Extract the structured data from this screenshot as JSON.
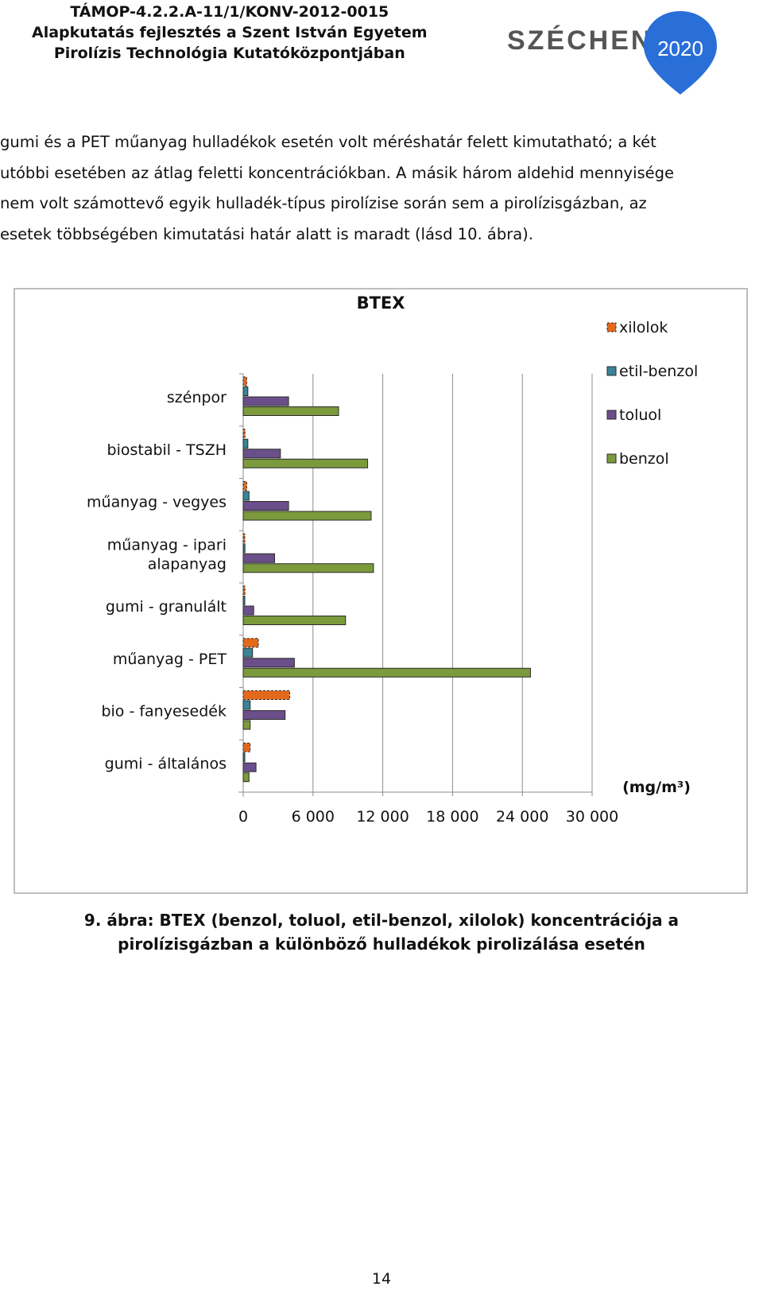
{
  "header": {
    "line1": "TÁMOP-4.2.2.A-11/1/KONV-2012-0015",
    "line2": "Alapkutatás fejlesztés a Szent István Egyetem",
    "line3": "Pirolízis Technológia Kutatóközpontjában"
  },
  "logo": {
    "text": "SZÉCHENYI",
    "year": "2020",
    "colors": {
      "text": "#555555",
      "pin": "#2a6fd8"
    }
  },
  "paragraph": [
    "gumi és a PET műanyag hulladékok esetén volt méréshatár felett kimutatható; a két",
    "utóbbi esetében az átlag feletti koncentrációkban. A másik három aldehid mennyisége",
    "nem volt számottevő egyik hulladék-típus pirolízise során sem a pirolízisgázban, az",
    "esetek többségében kimutatási határ alatt is maradt (lásd 10. ábra)."
  ],
  "chart_data": {
    "type": "bar",
    "orientation": "horizontal",
    "title": "BTEX",
    "xlabel": "(mg/m³)",
    "xlim": [
      0,
      30000
    ],
    "xticks": [
      0,
      6000,
      12000,
      18000,
      24000,
      30000
    ],
    "xtick_labels": [
      "0",
      "6 000",
      "12 000",
      "18 000",
      "24 000",
      "30 000"
    ],
    "grid": true,
    "legend_position": "right",
    "categories": [
      [
        "szénpor"
      ],
      [
        "biostabil - TSZH"
      ],
      [
        "műanyag - vegyes"
      ],
      [
        "műanyag - ipari",
        "alapanyag"
      ],
      [
        "gumi - granulált"
      ],
      [
        "műanyag - PET"
      ],
      [
        "bio - fanyesedék"
      ],
      [
        "gumi - általános"
      ]
    ],
    "series": [
      {
        "name": "xilolok",
        "color": "#e3691d",
        "dashed": true,
        "values": [
          300,
          150,
          300,
          100,
          150,
          1300,
          4000,
          600
        ]
      },
      {
        "name": "etil-benzol",
        "color": "#3b8497",
        "values": [
          400,
          400,
          500,
          150,
          100,
          800,
          600,
          100
        ]
      },
      {
        "name": "toluol",
        "color": "#6b4f8a",
        "values": [
          3900,
          3200,
          3900,
          2700,
          900,
          4400,
          3600,
          1100
        ]
      },
      {
        "name": "benzol",
        "color": "#7b9a3c",
        "values": [
          8200,
          10700,
          11000,
          11200,
          8800,
          24700,
          600,
          500
        ]
      }
    ],
    "legend_order": [
      "xilolok",
      "etil-benzol",
      "toluol",
      "benzol"
    ]
  },
  "caption": [
    "9. ábra: BTEX (benzol, toluol, etil-benzol, xilolok) koncentrációja a",
    "pirolízisgázban a különböző hulladékok pirolizálása esetén"
  ],
  "page_number": "14"
}
